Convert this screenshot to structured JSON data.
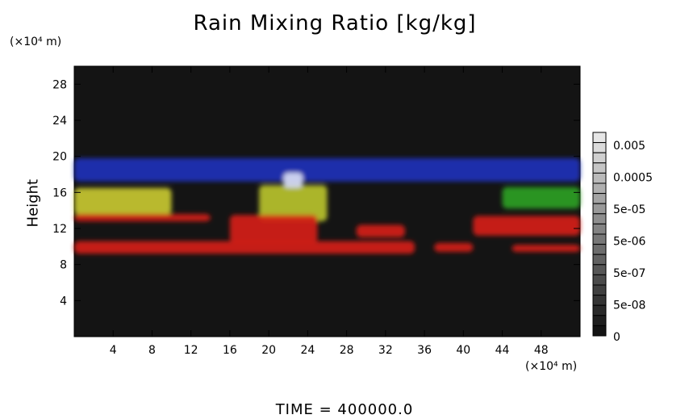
{
  "chart_data": {
    "type": "heatmap",
    "title": "Rain Mixing Ratio [kg/kg]",
    "ylabel": "Height",
    "yunit": "(×10⁴ m)",
    "xunit": "(×10⁴ m)",
    "xlim": [
      0,
      52
    ],
    "ylim": [
      0,
      30
    ],
    "xticks": [
      4,
      8,
      12,
      16,
      20,
      24,
      28,
      32,
      36,
      40,
      44,
      48
    ],
    "yticks": [
      4,
      8,
      12,
      16,
      20,
      24,
      28
    ],
    "colorbar": {
      "labels": [
        "0.005",
        "0.0005",
        "5e-05",
        "5e-06",
        "5e-07",
        "5e-08",
        "0"
      ],
      "steps": 20
    },
    "features": [
      {
        "color": "#2030b8",
        "x": [
          0,
          52
        ],
        "y": [
          17.2,
          19.8
        ]
      },
      {
        "color": "#c7c832",
        "x": [
          0,
          10
        ],
        "y": [
          13.5,
          16.5
        ]
      },
      {
        "color": "#b8c22c",
        "x": [
          19,
          26
        ],
        "y": [
          12.8,
          16.8
        ]
      },
      {
        "color": "#d8ddf5",
        "x": [
          21.5,
          23.5
        ],
        "y": [
          16.5,
          18.2
        ]
      },
      {
        "color": "#d42018",
        "x": [
          0,
          35
        ],
        "y": [
          9.2,
          10.6
        ]
      },
      {
        "color": "#d42018",
        "x": [
          16,
          25
        ],
        "y": [
          10.4,
          13.5
        ]
      },
      {
        "color": "#d42018",
        "x": [
          0,
          14
        ],
        "y": [
          12.8,
          13.6
        ]
      },
      {
        "color": "#2a9e22",
        "x": [
          44,
          52
        ],
        "y": [
          14.2,
          16.6
        ]
      },
      {
        "color": "#d42018",
        "x": [
          41,
          52
        ],
        "y": [
          11.2,
          13.4
        ]
      },
      {
        "color": "#d42018",
        "x": [
          37,
          41
        ],
        "y": [
          9.4,
          10.4
        ]
      },
      {
        "color": "#d42018",
        "x": [
          45,
          52
        ],
        "y": [
          9.4,
          10.2
        ]
      },
      {
        "color": "#d42018",
        "x": [
          29,
          34
        ],
        "y": [
          11.0,
          12.4
        ]
      }
    ]
  },
  "footer": "TIME  =  400000.0"
}
